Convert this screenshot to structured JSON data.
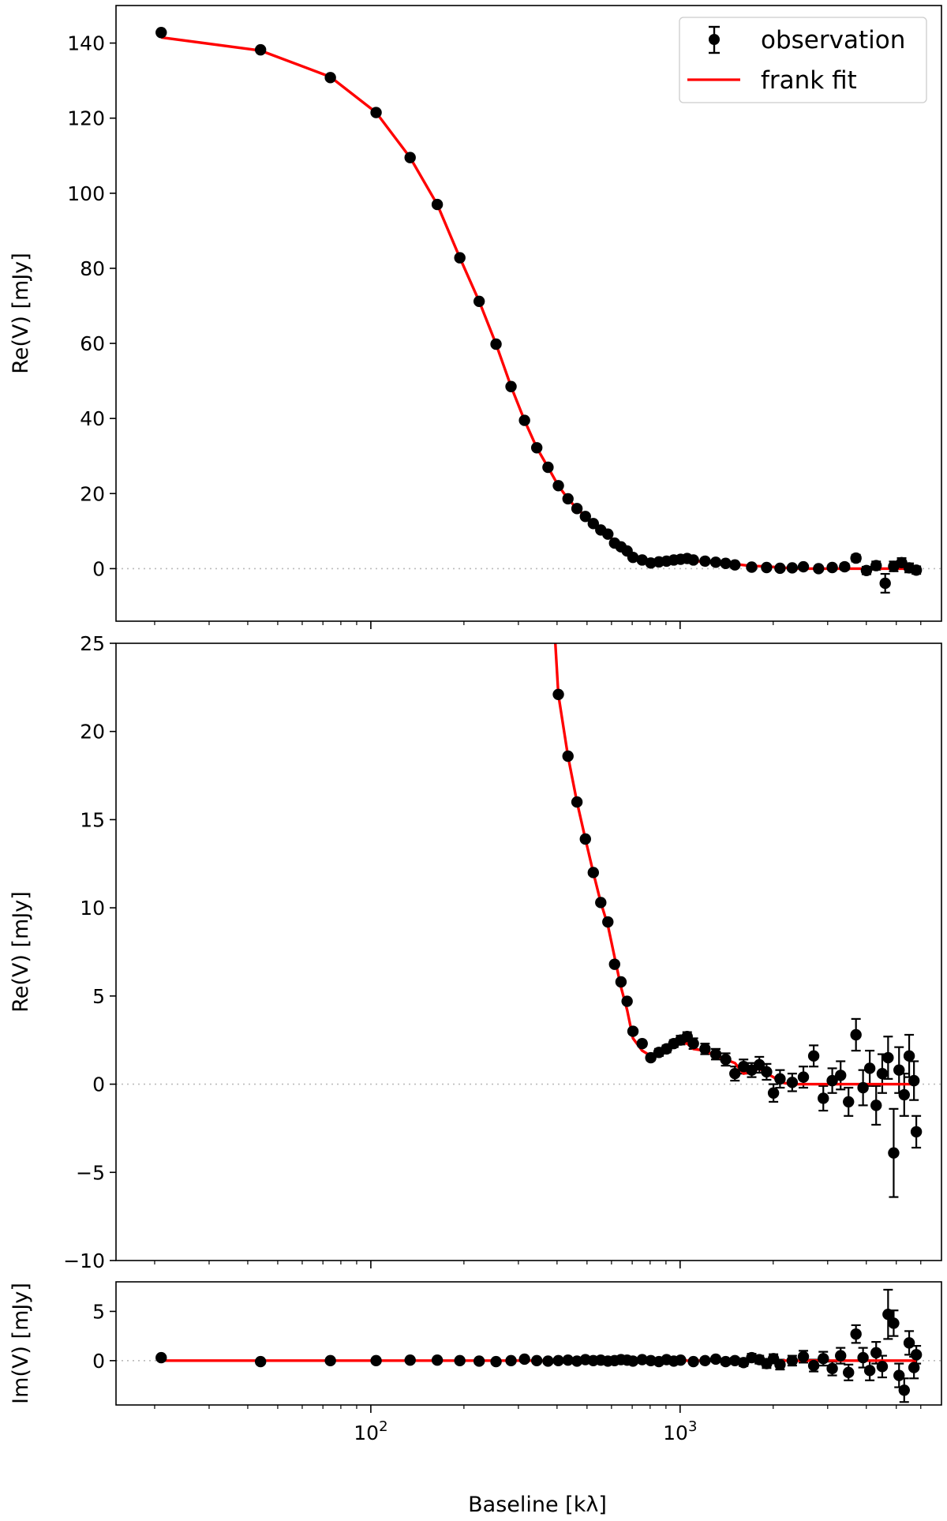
{
  "chart_data": [
    {
      "type": "scatter",
      "panel": "top",
      "ylabel": "Re(V) [mJy]",
      "xscale": "log",
      "xlim": [
        15,
        7000
      ],
      "ylim": [
        -14,
        150
      ],
      "yticks": [
        0,
        20,
        40,
        60,
        80,
        100,
        120,
        140
      ],
      "zero_line": true,
      "legend": {
        "placement": "top-right",
        "entries": [
          {
            "label": "observation",
            "marker": "errorbar-point",
            "color": "#000000"
          },
          {
            "label": "frank fit",
            "marker": "line",
            "color": "#ff0000"
          }
        ]
      },
      "series": [
        {
          "name": "observation",
          "color": "#000000",
          "x": [
            21,
            44,
            74,
            104,
            134,
            164,
            194,
            224,
            254,
            284,
            314,
            344,
            374,
            404,
            434,
            464,
            494,
            524,
            554,
            584,
            614,
            644,
            674,
            704,
            754,
            804,
            854,
            904,
            954,
            1004,
            1054,
            1104,
            1204,
            1304,
            1404,
            1504,
            1704,
            1904,
            2104,
            2304,
            2504,
            2804,
            3104,
            3404,
            3704,
            4004,
            4304,
            4604,
            4904,
            5204,
            5504,
            5804
          ],
          "y": [
            142.8,
            138.2,
            130.8,
            121.5,
            109.5,
            97.0,
            82.8,
            71.2,
            59.8,
            48.5,
            39.5,
            32.2,
            27.0,
            22.1,
            18.6,
            16.0,
            13.9,
            12.0,
            10.3,
            9.2,
            6.8,
            5.8,
            4.7,
            3.0,
            2.3,
            1.5,
            1.8,
            2.0,
            2.3,
            2.5,
            2.7,
            2.3,
            2.0,
            1.7,
            1.4,
            1.0,
            0.4,
            0.3,
            0.1,
            0.2,
            0.5,
            0.0,
            0.3,
            0.5,
            2.8,
            -0.5,
            0.8,
            -3.9,
            0.6,
            1.6,
            0.2,
            -0.4
          ],
          "yerr": [
            0.1,
            0.1,
            0.1,
            0.1,
            0.1,
            0.1,
            0.1,
            0.1,
            0.1,
            0.1,
            0.1,
            0.1,
            0.1,
            0.1,
            0.1,
            0.1,
            0.1,
            0.1,
            0.1,
            0.1,
            0.1,
            0.1,
            0.1,
            0.15,
            0.15,
            0.15,
            0.2,
            0.2,
            0.2,
            0.25,
            0.25,
            0.3,
            0.3,
            0.3,
            0.35,
            0.4,
            0.4,
            0.45,
            0.5,
            0.5,
            0.6,
            0.6,
            0.7,
            0.8,
            0.9,
            1.0,
            1.1,
            2.5,
            1.3,
            1.2,
            1.2,
            1.0
          ]
        },
        {
          "name": "frank fit",
          "color": "#ff0000",
          "x": [
            21,
            44,
            74,
            104,
            134,
            164,
            194,
            224,
            254,
            284,
            314,
            344,
            374,
            404,
            434,
            464,
            494,
            524,
            554,
            584,
            614,
            644,
            674,
            704,
            754,
            804,
            854,
            904,
            954,
            1004,
            1054,
            1104,
            1204,
            1304,
            1404,
            1504,
            1704,
            1904,
            2104,
            2304,
            2504,
            2804,
            3104,
            3404,
            3704,
            4004,
            4304,
            4604,
            4904,
            5204,
            5504,
            5804
          ],
          "y": [
            141.5,
            138.0,
            131.0,
            121.5,
            109.5,
            97.0,
            82.8,
            71.2,
            59.8,
            48.5,
            39.5,
            32.2,
            27.0,
            22.1,
            18.6,
            16.0,
            13.9,
            12.0,
            10.3,
            9.0,
            7.2,
            5.5,
            4.2,
            2.6,
            1.9,
            1.6,
            1.8,
            2.0,
            2.2,
            2.4,
            2.3,
            2.0,
            1.9,
            1.6,
            1.4,
            1.2,
            0.7,
            0.6,
            0.3,
            0.1,
            0.0,
            0.0,
            0.0,
            0.0,
            0.0,
            0.0,
            0.0,
            0.0,
            0.0,
            0.0,
            0.0,
            0.0
          ]
        }
      ]
    },
    {
      "type": "scatter",
      "panel": "middle",
      "ylabel": "Re(V) [mJy]",
      "xscale": "log",
      "xlim": [
        15,
        7000
      ],
      "ylim": [
        -10,
        25
      ],
      "yticks": [
        -10,
        -5,
        0,
        5,
        10,
        15,
        20,
        25
      ],
      "ytick_labels": [
        "−10",
        "−5",
        "0",
        "5",
        "10",
        "15",
        "20",
        "25"
      ],
      "zero_line": true,
      "series": [
        {
          "name": "observation",
          "color": "#000000",
          "x": [
            404,
            434,
            464,
            494,
            524,
            554,
            584,
            614,
            644,
            674,
            704,
            754,
            804,
            854,
            904,
            954,
            1004,
            1054,
            1104,
            1204,
            1304,
            1404,
            1504,
            1604,
            1704,
            1804,
            1904,
            2004,
            2104,
            2304,
            2504,
            2704,
            2904,
            3104,
            3304,
            3504,
            3704,
            3904,
            4104,
            4304,
            4504,
            4704,
            4904,
            5104,
            5304,
            5504,
            5704,
            5804
          ],
          "y": [
            22.1,
            18.6,
            16.0,
            13.9,
            12.0,
            10.3,
            9.2,
            6.8,
            5.8,
            4.7,
            3.0,
            2.3,
            1.5,
            1.8,
            2.0,
            2.3,
            2.5,
            2.7,
            2.3,
            2.0,
            1.7,
            1.4,
            0.6,
            1.0,
            0.8,
            1.1,
            0.7,
            -0.5,
            0.3,
            0.1,
            0.4,
            1.6,
            -0.8,
            0.2,
            0.5,
            -1.0,
            2.8,
            -0.2,
            0.9,
            -1.2,
            0.6,
            1.5,
            -3.9,
            0.8,
            -0.6,
            1.6,
            0.2,
            -2.7
          ],
          "yerr": [
            0.1,
            0.1,
            0.1,
            0.1,
            0.1,
            0.1,
            0.1,
            0.1,
            0.1,
            0.1,
            0.15,
            0.15,
            0.15,
            0.2,
            0.2,
            0.2,
            0.25,
            0.25,
            0.3,
            0.3,
            0.3,
            0.35,
            0.4,
            0.4,
            0.4,
            0.45,
            0.45,
            0.5,
            0.5,
            0.5,
            0.6,
            0.6,
            0.7,
            0.7,
            0.8,
            0.8,
            0.9,
            1.0,
            1.0,
            1.1,
            1.1,
            1.2,
            2.5,
            1.3,
            1.2,
            1.2,
            1.1,
            0.9
          ]
        },
        {
          "name": "frank fit",
          "color": "#ff0000",
          "x": [
            395,
            404,
            434,
            464,
            494,
            524,
            554,
            584,
            614,
            644,
            674,
            704,
            754,
            804,
            854,
            904,
            954,
            1004,
            1054,
            1104,
            1204,
            1304,
            1404,
            1504,
            1604,
            1704,
            1804,
            1904,
            2004,
            2104,
            2304,
            2504,
            2804,
            3104,
            3404,
            3704,
            4004,
            4304,
            4604,
            4904,
            5204,
            5504,
            5804
          ],
          "y": [
            25.0,
            22.1,
            18.6,
            16.0,
            13.9,
            12.0,
            10.3,
            9.0,
            7.2,
            5.5,
            4.2,
            2.6,
            1.9,
            1.6,
            1.8,
            2.0,
            2.2,
            2.4,
            2.3,
            2.0,
            1.9,
            1.6,
            1.4,
            1.2,
            0.6,
            0.7,
            0.9,
            0.6,
            0.4,
            0.1,
            0.0,
            0.0,
            0.0,
            0.0,
            0.0,
            0.0,
            0.0,
            0.0,
            0.0,
            0.0,
            0.0,
            0.0,
            0.0
          ]
        }
      ]
    },
    {
      "type": "scatter",
      "panel": "bottom",
      "ylabel": "Im(V) [mJy]",
      "xlabel": "Baseline  [kλ]",
      "xscale": "log",
      "xlim": [
        15,
        7000
      ],
      "ylim": [
        -4.5,
        8
      ],
      "yticks": [
        0,
        5
      ],
      "xticks": [
        100,
        1000
      ],
      "xtick_labels": [
        {
          "base": "10",
          "exp": "2"
        },
        {
          "base": "10",
          "exp": "3"
        }
      ],
      "zero_line": true,
      "series": [
        {
          "name": "observation",
          "color": "#000000",
          "x": [
            21,
            44,
            74,
            104,
            134,
            164,
            194,
            224,
            254,
            284,
            314,
            344,
            374,
            404,
            434,
            464,
            494,
            524,
            554,
            584,
            614,
            644,
            674,
            704,
            754,
            804,
            854,
            904,
            954,
            1004,
            1104,
            1204,
            1304,
            1404,
            1504,
            1604,
            1704,
            1804,
            1904,
            2004,
            2104,
            2304,
            2504,
            2704,
            2904,
            3104,
            3304,
            3504,
            3704,
            3904,
            4104,
            4304,
            4504,
            4704,
            4904,
            5104,
            5304,
            5504,
            5704,
            5804
          ],
          "y": [
            0.3,
            -0.1,
            0.0,
            0.0,
            0.05,
            0.05,
            0.0,
            -0.05,
            -0.1,
            0.0,
            0.15,
            0.0,
            -0.05,
            0.0,
            0.05,
            -0.05,
            0.1,
            0.0,
            0.05,
            -0.05,
            0.0,
            0.1,
            0.05,
            -0.05,
            0.1,
            0.0,
            -0.1,
            0.1,
            -0.05,
            0.05,
            -0.1,
            0.0,
            0.15,
            -0.1,
            0.0,
            -0.2,
            0.3,
            0.1,
            -0.3,
            0.2,
            -0.4,
            0.0,
            0.4,
            -0.5,
            0.2,
            -0.8,
            0.5,
            -1.2,
            2.7,
            0.3,
            -1.0,
            0.8,
            -0.6,
            4.7,
            3.8,
            -1.5,
            -3.0,
            1.8,
            -0.7,
            0.6
          ],
          "yerr": [
            0.05,
            0.05,
            0.05,
            0.05,
            0.05,
            0.05,
            0.05,
            0.05,
            0.05,
            0.05,
            0.05,
            0.05,
            0.05,
            0.05,
            0.05,
            0.05,
            0.05,
            0.05,
            0.05,
            0.05,
            0.05,
            0.1,
            0.1,
            0.1,
            0.1,
            0.1,
            0.15,
            0.15,
            0.15,
            0.2,
            0.2,
            0.25,
            0.25,
            0.3,
            0.3,
            0.35,
            0.4,
            0.4,
            0.45,
            0.45,
            0.5,
            0.5,
            0.6,
            0.6,
            0.7,
            0.7,
            0.8,
            0.8,
            0.9,
            1.0,
            1.0,
            1.1,
            1.1,
            2.5,
            1.3,
            1.2,
            1.2,
            1.2,
            1.1,
            0.9
          ]
        },
        {
          "name": "frank fit",
          "color": "#ff0000",
          "x": [
            21,
            5804
          ],
          "y": [
            0.0,
            0.0
          ]
        }
      ]
    }
  ]
}
